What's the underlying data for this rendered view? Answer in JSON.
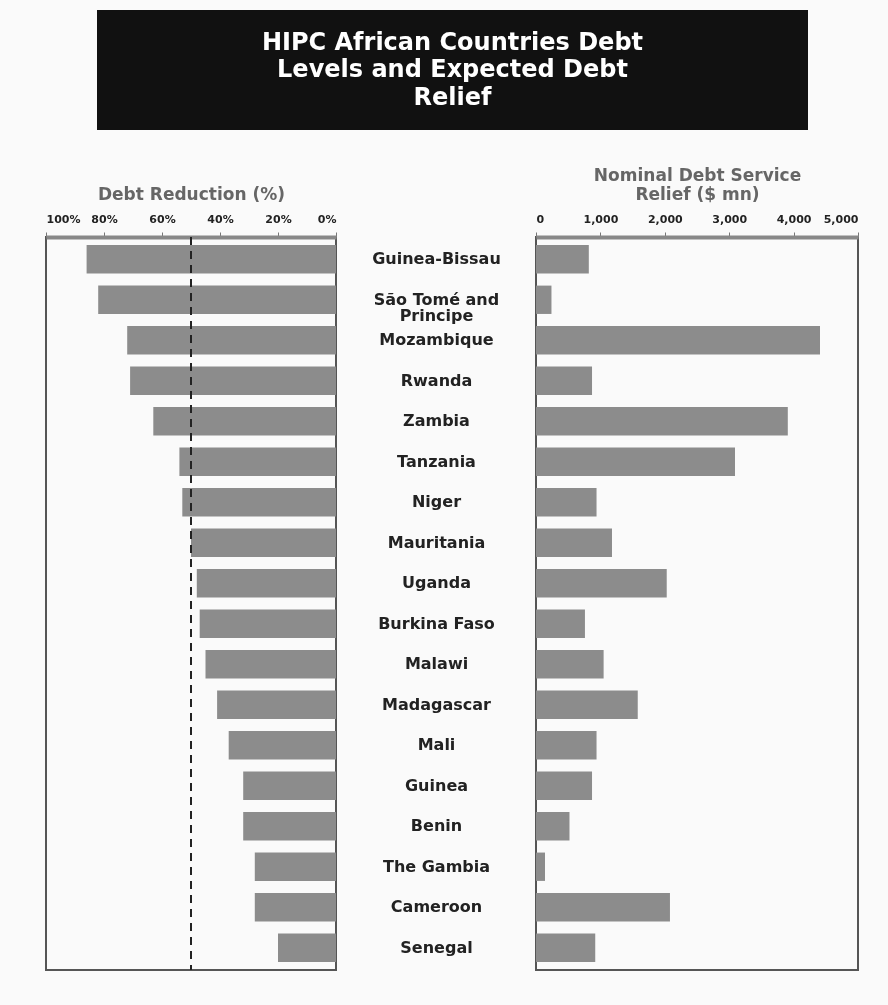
{
  "chart_data": [
    {
      "type": "bar",
      "title": "HIPC African Countries Debt Levels and Expected Debt Relief",
      "xlabel": "Debt Reduction (%)",
      "orientation": "horizontal",
      "color": "#8c8c8c",
      "grid": false,
      "categories": [
        "Guinea-Bissau",
        "São Tomé and Principe",
        "Mozambique",
        "Rwanda",
        "Zambia",
        "Tanzania",
        "Niger",
        "Mauritania",
        "Uganda",
        "Burkina Faso",
        "Malawi",
        "Madagascar",
        "Mali",
        "Guinea",
        "Benin",
        "The Gambia",
        "Cameroon",
        "Senegal"
      ],
      "values": [
        86,
        82,
        72,
        71,
        63,
        54,
        53,
        50,
        48,
        47,
        45,
        41,
        37,
        32,
        32,
        28,
        28,
        20
      ],
      "xlim": [
        100,
        0
      ],
      "xticks": [
        {
          "value": 100,
          "label": "100%"
        },
        {
          "value": 80,
          "label": "80%"
        },
        {
          "value": 60,
          "label": "60%"
        },
        {
          "value": 40,
          "label": "40%"
        },
        {
          "value": 20,
          "label": "20%"
        },
        {
          "value": 0,
          "label": "0%"
        }
      ],
      "ref_lines": [
        {
          "axis": "x",
          "value": 50,
          "color": "#222222",
          "line_style": "dashed"
        }
      ]
    },
    {
      "type": "bar",
      "xlabel": "Nominal Debt Service Relief ($ mn)",
      "orientation": "horizontal",
      "color": "#8c8c8c",
      "grid": false,
      "tick_labels": "x",
      "categories": [
        "Guinea-Bissau",
        "São Tomé and Principe",
        "Mozambique",
        "Rwanda",
        "Zambia",
        "Tanzania",
        "Niger",
        "Mauritania",
        "Uganda",
        "Burkina Faso",
        "Malawi",
        "Madagascar",
        "Mali",
        "Guinea",
        "Benin",
        "The Gambia",
        "Cameroon",
        "Senegal"
      ],
      "values": [
        820,
        240,
        4410,
        870,
        3910,
        3090,
        940,
        1180,
        2030,
        760,
        1050,
        1580,
        940,
        870,
        520,
        140,
        2080,
        920
      ],
      "xlim": [
        0,
        5000
      ],
      "xticks": [
        0,
        {
          "value": 1000,
          "label": "1,000"
        },
        {
          "value": 2000,
          "label": "2,000"
        },
        {
          "value": 3000,
          "label": "3,000"
        },
        {
          "value": 4000,
          "label": "4,000"
        },
        {
          "value": 5000,
          "label": "5,000"
        }
      ]
    }
  ]
}
